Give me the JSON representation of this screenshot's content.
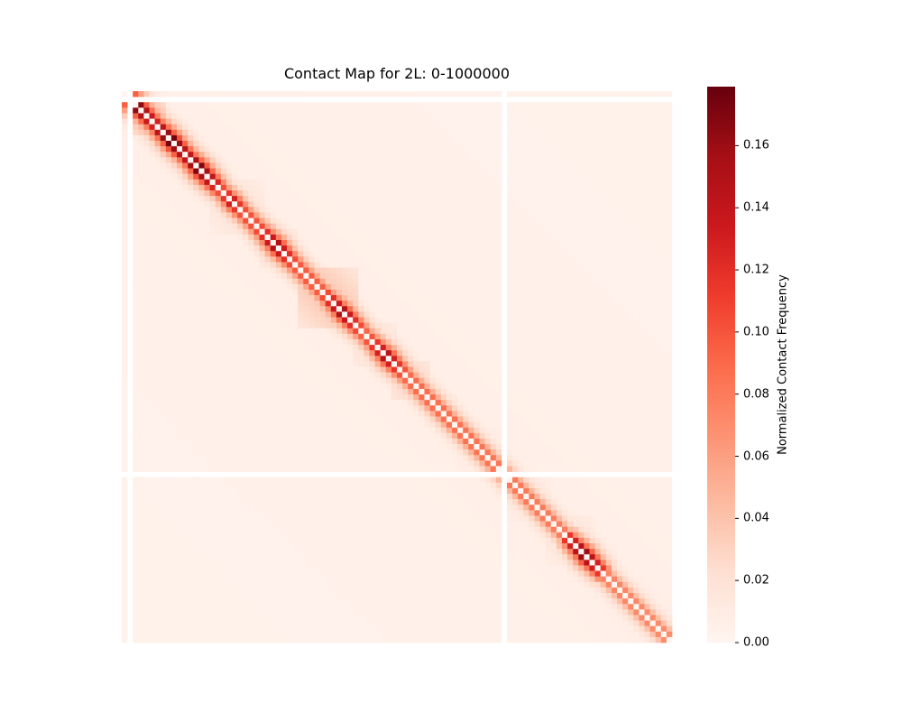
{
  "chart_data": {
    "type": "heatmap",
    "title": "Contact Map for 2L: 0-1000000",
    "xlabel": "",
    "ylabel": "",
    "colormap": "Reds",
    "colorbar": {
      "label": "Normalized Contact Frequency",
      "range": [
        0.0,
        0.179
      ],
      "ticks": [
        "0.00",
        "0.02",
        "0.04",
        "0.06",
        "0.08",
        "0.10",
        "0.12",
        "0.14",
        "0.16"
      ]
    },
    "n_bins": 100,
    "empty_bins": [
      1,
      69
    ],
    "tad_blocks": [
      {
        "start": 2,
        "end": 7,
        "level": 0.055
      },
      {
        "start": 8,
        "end": 12,
        "level": 0.04
      },
      {
        "start": 13,
        "end": 16,
        "level": 0.045
      },
      {
        "start": 16,
        "end": 25,
        "level": 0.02
      },
      {
        "start": 25,
        "end": 31,
        "level": 0.03
      },
      {
        "start": 32,
        "end": 42,
        "level": 0.04
      },
      {
        "start": 42,
        "end": 49,
        "level": 0.025
      },
      {
        "start": 49,
        "end": 55,
        "level": 0.035
      },
      {
        "start": 55,
        "end": 60,
        "level": 0.025
      },
      {
        "start": 61,
        "end": 68,
        "level": 0.015
      },
      {
        "start": 70,
        "end": 77,
        "level": 0.018
      },
      {
        "start": 77,
        "end": 85,
        "level": 0.02
      },
      {
        "start": 88,
        "end": 99,
        "level": 0.01
      }
    ],
    "diagonal_peaks": [
      {
        "bin": 2,
        "value": 0.179
      },
      {
        "bin": 4,
        "value": 0.15
      },
      {
        "bin": 9,
        "value": 0.175
      },
      {
        "bin": 14,
        "value": 0.17
      },
      {
        "bin": 20,
        "value": 0.13
      },
      {
        "bin": 28,
        "value": 0.15
      },
      {
        "bin": 40,
        "value": 0.15
      },
      {
        "bin": 48,
        "value": 0.145
      },
      {
        "bin": 84,
        "value": 0.16
      }
    ]
  }
}
